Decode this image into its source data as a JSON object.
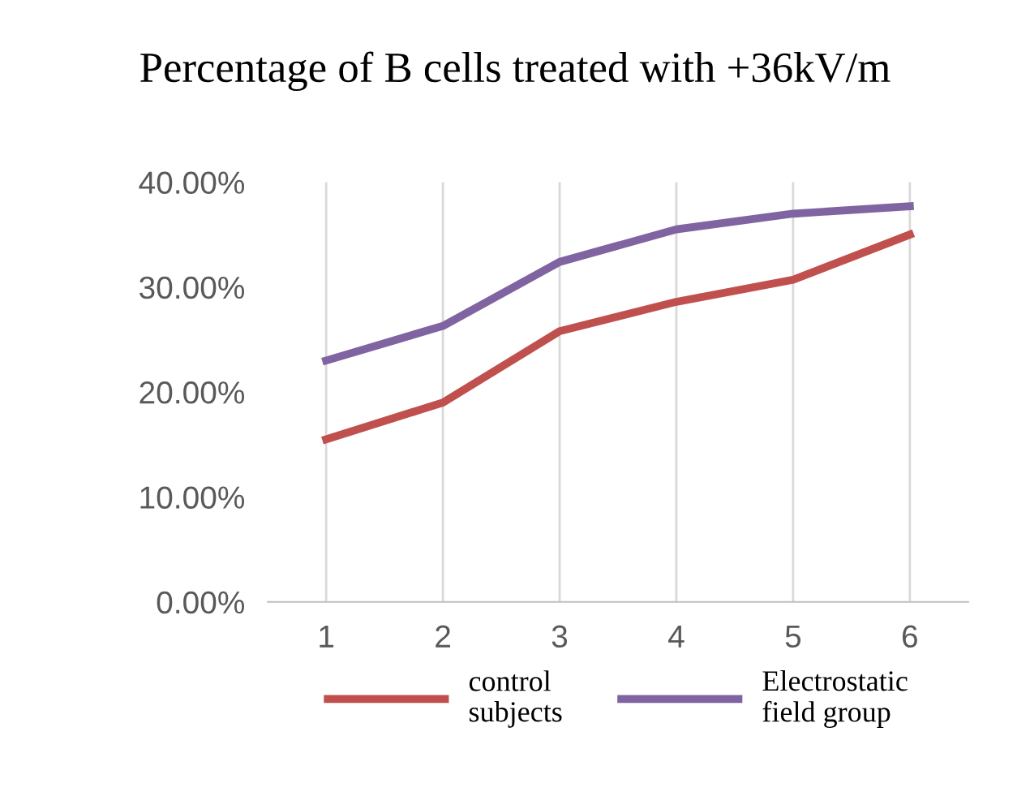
{
  "chart_data": {
    "type": "line",
    "title": "Percentage of B cells treated with +36kV/m",
    "categories": [
      "1",
      "2",
      "3",
      "4",
      "5",
      "6"
    ],
    "series": [
      {
        "name": "control\nsubjects",
        "color": "#c0504d",
        "values": [
          15.5,
          19.0,
          25.8,
          28.6,
          30.7,
          35.0
        ]
      },
      {
        "name": "Electrostatic\nfield group",
        "color": "#8064a2",
        "values": [
          23.0,
          26.3,
          32.4,
          35.5,
          37.0,
          37.7
        ]
      }
    ],
    "ylim": [
      0,
      40
    ],
    "yticks": [
      {
        "value": 0,
        "label": "0.00%"
      },
      {
        "value": 10,
        "label": "10.00%"
      },
      {
        "value": 20,
        "label": "20.00%"
      },
      {
        "value": 30,
        "label": "30.00%"
      },
      {
        "value": 40,
        "label": "40.00%"
      }
    ],
    "grid": "x",
    "legend": "bottom",
    "marker": "none",
    "line_style": "solid"
  }
}
